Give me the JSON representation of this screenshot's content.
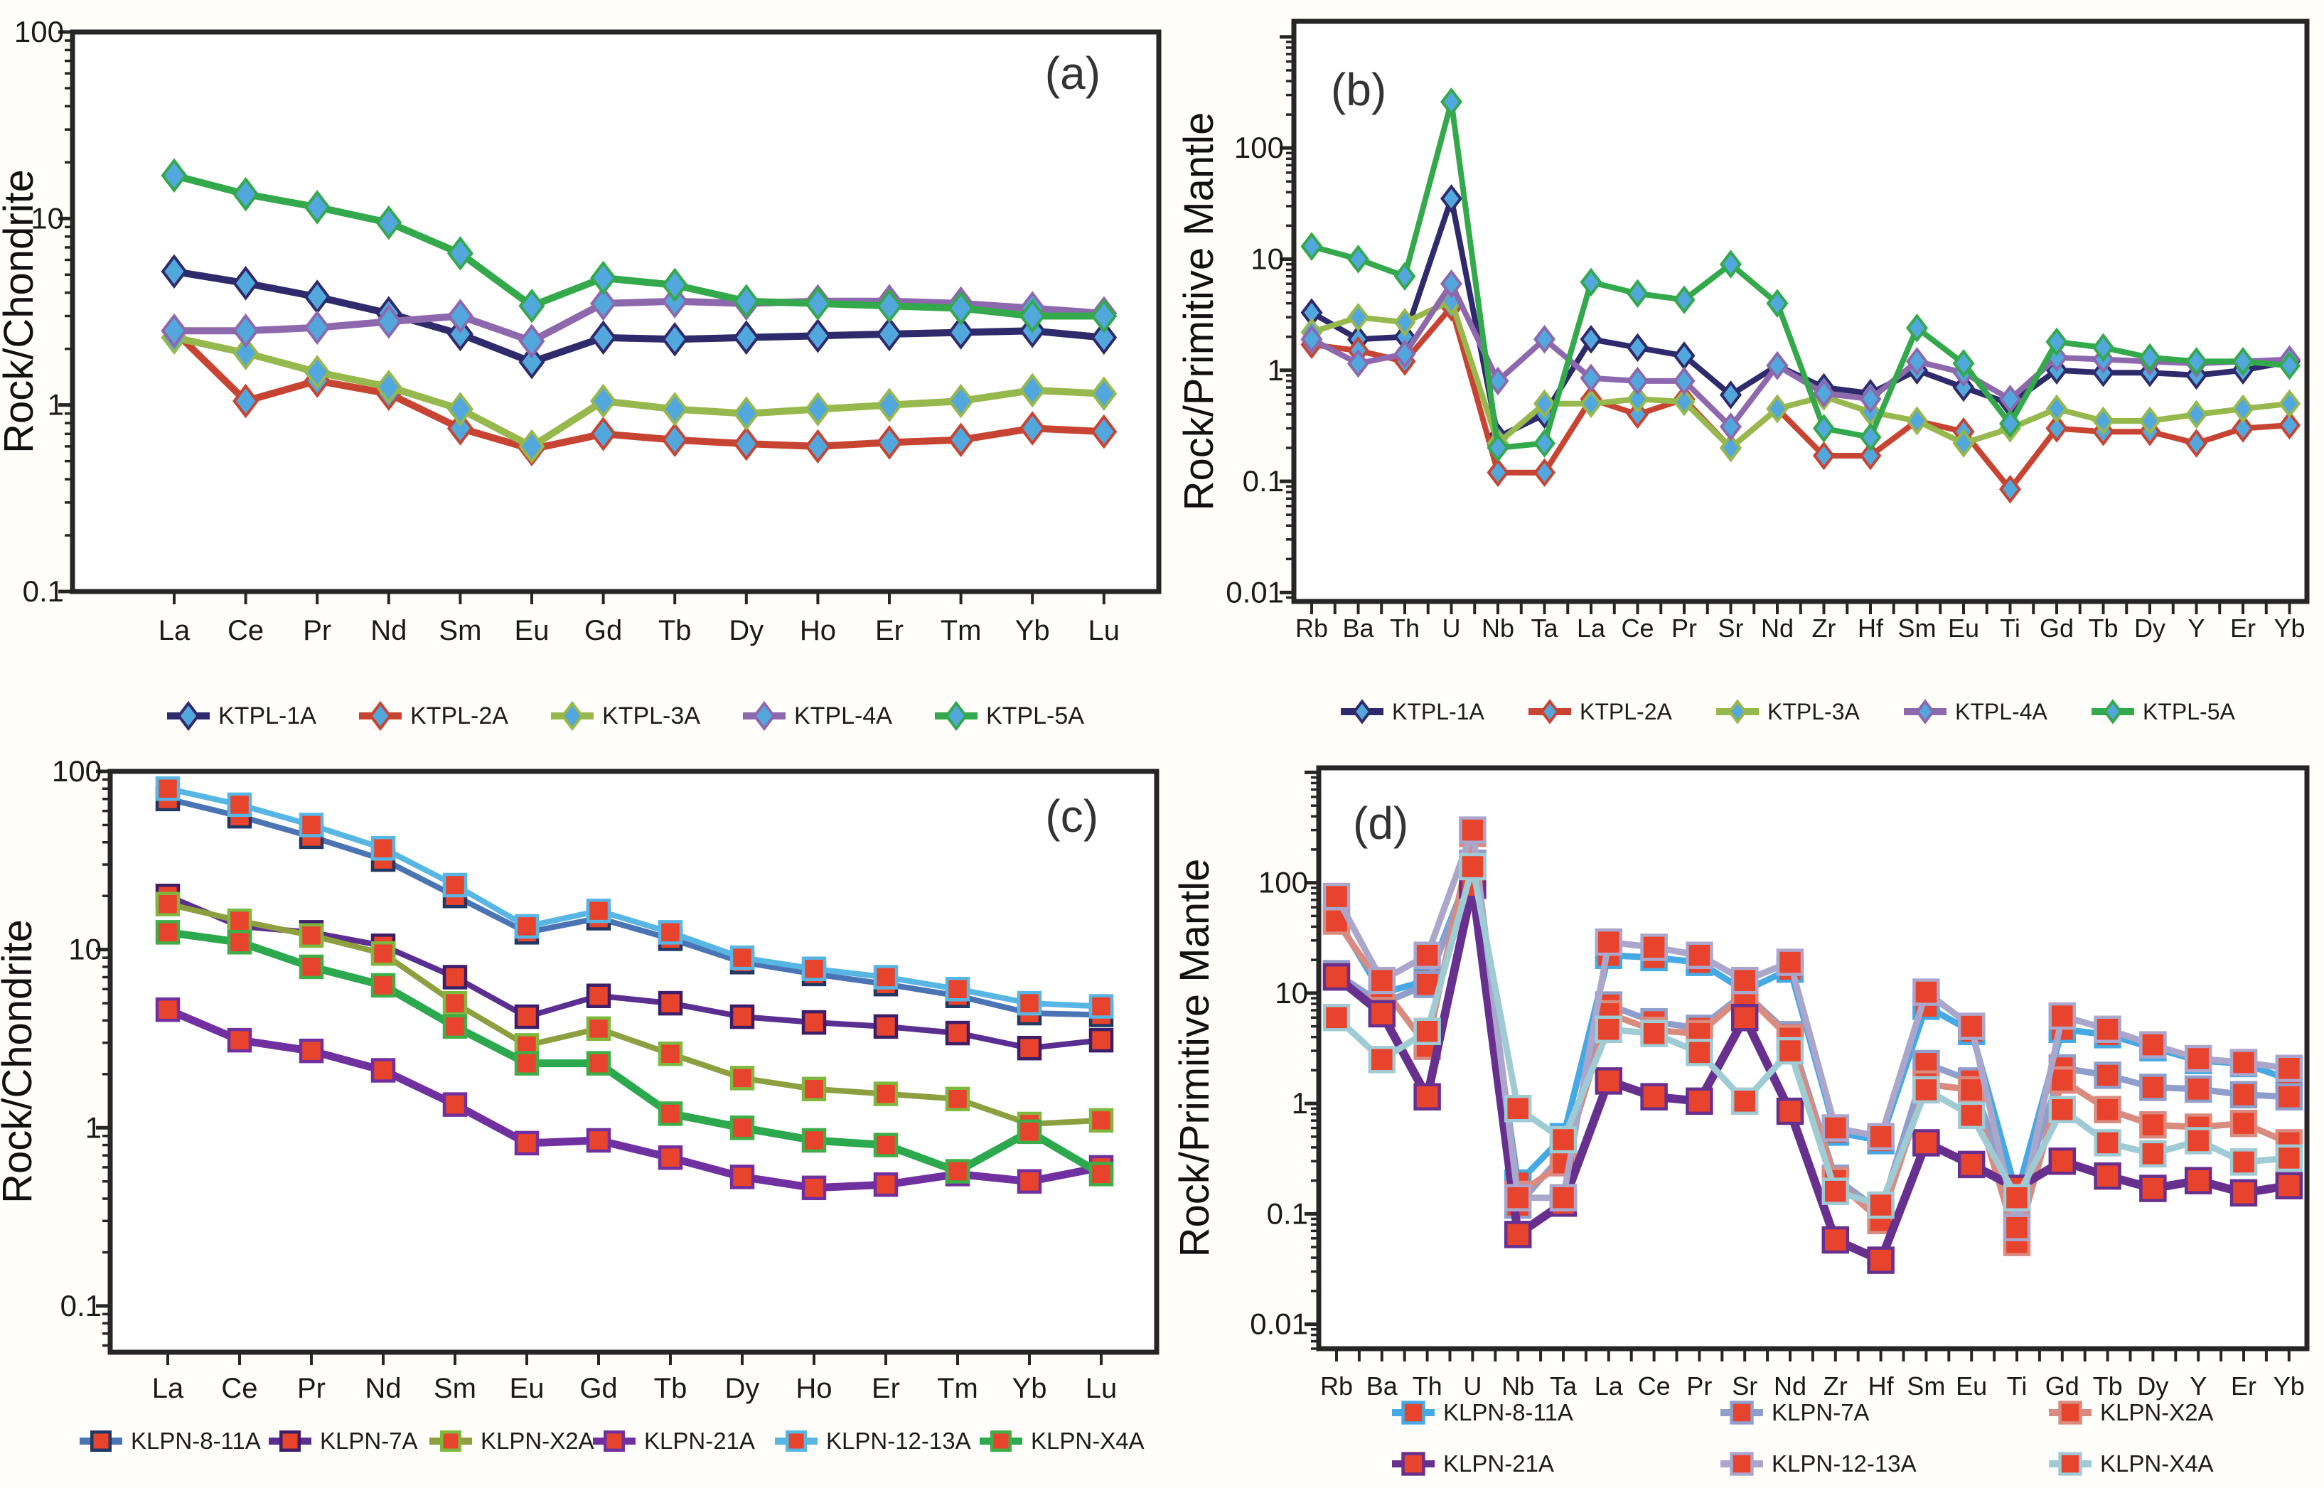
{
  "figure": {
    "background": "#fffefb",
    "frame_color": "#262626",
    "text_color": "#1a1a1a",
    "letter_color": "#333333"
  },
  "chart_data": [
    {
      "id": "a",
      "panel_label": "(a)",
      "type": "line",
      "yaxis_scale": "log",
      "ylabel": "Rock/Chondrite",
      "x_categories": [
        "La",
        "Ce",
        "Pr",
        "Nd",
        "Sm",
        "Eu",
        "Gd",
        "Tb",
        "Dy",
        "Ho",
        "Er",
        "Tm",
        "Yb",
        "Lu"
      ],
      "ylim": [
        0.1,
        100
      ],
      "yticks": [
        "100",
        "10",
        "1",
        "0.1"
      ],
      "grid": false,
      "legend_position": "bottom",
      "marker": "diamond",
      "marker_fill": "#52a7dd",
      "series": [
        {
          "name": "KTPL-1A",
          "color": "#2f2a6b",
          "values": [
            5.2,
            4.5,
            3.8,
            3.1,
            2.4,
            1.7,
            2.3,
            2.25,
            2.3,
            2.35,
            2.4,
            2.45,
            2.5,
            2.3
          ]
        },
        {
          "name": "KTPL-2A",
          "color": "#c84432",
          "values": [
            2.5,
            1.05,
            1.35,
            1.15,
            0.75,
            0.58,
            0.7,
            0.65,
            0.62,
            0.6,
            0.63,
            0.65,
            0.75,
            0.72
          ]
        },
        {
          "name": "KTPL-3A",
          "color": "#96b84c",
          "values": [
            2.3,
            1.9,
            1.5,
            1.25,
            0.95,
            0.6,
            1.05,
            0.95,
            0.9,
            0.95,
            1.0,
            1.05,
            1.2,
            1.15
          ]
        },
        {
          "name": "KTPL-4A",
          "color": "#8d68ad",
          "values": [
            2.5,
            2.5,
            2.6,
            2.8,
            3.0,
            2.2,
            3.5,
            3.6,
            3.5,
            3.6,
            3.6,
            3.5,
            3.3,
            3.1
          ]
        },
        {
          "name": "KTPL-5A",
          "color": "#33a94c",
          "values": [
            17,
            13.5,
            11.5,
            9.5,
            6.5,
            3.4,
            4.8,
            4.4,
            3.6,
            3.5,
            3.4,
            3.3,
            3.0,
            3.0
          ]
        }
      ]
    },
    {
      "id": "b",
      "panel_label": "(b)",
      "type": "line",
      "yaxis_scale": "log",
      "ylabel": "Rock/Primitive Mantle",
      "x_categories": [
        "Rb",
        "Ba",
        "Th",
        "U",
        "Nb",
        "Ta",
        "La",
        "Ce",
        "Pr",
        "Sr",
        "Nd",
        "Zr",
        "Hf",
        "Sm",
        "Eu",
        "Ti",
        "Gd",
        "Tb",
        "Dy",
        "Y",
        "Er",
        "Yb"
      ],
      "ylim": [
        0.0083,
        1380
      ],
      "yticks": [
        "100",
        "10",
        "1",
        "0.1",
        "0.01"
      ],
      "grid": false,
      "legend_position": "bottom",
      "marker": "diamond",
      "marker_fill": "#52a7dd",
      "series": [
        {
          "name": "KTPL-1A",
          "color": "#2f2a6b",
          "values": [
            3.3,
            1.9,
            2.0,
            35,
            0.25,
            0.4,
            1.9,
            1.6,
            1.35,
            0.6,
            1.1,
            0.7,
            0.62,
            1.0,
            0.7,
            0.5,
            1.0,
            0.95,
            0.95,
            0.9,
            1.0,
            1.2
          ]
        },
        {
          "name": "KTPL-2A",
          "color": "#c84432",
          "values": [
            1.7,
            1.5,
            1.2,
            3.7,
            0.12,
            0.12,
            0.55,
            0.4,
            0.55,
            0.2,
            0.45,
            0.17,
            0.17,
            0.35,
            0.28,
            0.085,
            0.3,
            0.28,
            0.28,
            0.22,
            0.3,
            0.32
          ]
        },
        {
          "name": "KTPL-3A",
          "color": "#96b84c",
          "values": [
            2.2,
            3.0,
            2.7,
            4.2,
            0.22,
            0.5,
            0.5,
            0.55,
            0.52,
            0.2,
            0.45,
            0.58,
            0.42,
            0.35,
            0.22,
            0.3,
            0.45,
            0.35,
            0.35,
            0.4,
            0.45,
            0.5
          ]
        },
        {
          "name": "KTPL-4A",
          "color": "#8d68ad",
          "values": [
            1.9,
            1.15,
            1.4,
            6.0,
            0.8,
            1.9,
            0.85,
            0.8,
            0.8,
            0.31,
            1.1,
            0.62,
            0.55,
            1.2,
            0.95,
            0.55,
            1.3,
            1.25,
            1.2,
            1.15,
            1.2,
            1.25
          ]
        },
        {
          "name": "KTPL-5A",
          "color": "#33a94c",
          "values": [
            13,
            10,
            7,
            260,
            0.2,
            0.22,
            6.2,
            4.9,
            4.3,
            9,
            4.0,
            0.3,
            0.25,
            2.4,
            1.15,
            0.33,
            1.8,
            1.6,
            1.3,
            1.2,
            1.2,
            1.1
          ]
        }
      ]
    },
    {
      "id": "c",
      "panel_label": "(c)",
      "type": "line",
      "yaxis_scale": "log",
      "ylabel": "Rock/Chondrite",
      "x_categories": [
        "La",
        "Ce",
        "Pr",
        "Nd",
        "Sm",
        "Eu",
        "Gd",
        "Tb",
        "Dy",
        "Ho",
        "Er",
        "Tm",
        "Yb",
        "Lu"
      ],
      "ylim": [
        0.055,
        100
      ],
      "yticks": [
        "100",
        "10",
        "1",
        "0.1"
      ],
      "grid": false,
      "legend_position": "bottom",
      "marker": "square",
      "marker_fill": "#e8432c",
      "series": [
        {
          "name": "KLPN-8-11A",
          "color": "#4a74b4",
          "edge": "#1f3864",
          "values": [
            70,
            56,
            43,
            32,
            20,
            12.5,
            15,
            11.5,
            8.5,
            7.3,
            6.4,
            5.5,
            4.4,
            4.3
          ]
        },
        {
          "name": "KLPN-7A",
          "color": "#5b2f91",
          "edge": "#3d1e68",
          "values": [
            20,
            13.5,
            12.5,
            10.5,
            7.0,
            4.2,
            5.5,
            5.0,
            4.2,
            3.9,
            3.7,
            3.4,
            2.8,
            3.1
          ]
        },
        {
          "name": "KLPN-X2A",
          "color": "#8d9f3f",
          "edge": "#7fb83f",
          "values": [
            18,
            14.5,
            12,
            9.5,
            5.0,
            2.9,
            3.6,
            2.6,
            1.9,
            1.65,
            1.55,
            1.45,
            1.05,
            1.1
          ]
        },
        {
          "name": "KLPN-21A",
          "color": "#7030a0",
          "edge": "#7030a0",
          "values": [
            4.6,
            3.1,
            2.7,
            2.1,
            1.35,
            0.82,
            0.85,
            0.68,
            0.53,
            0.46,
            0.48,
            0.55,
            0.5,
            0.6
          ]
        },
        {
          "name": "KLPN-12-13A",
          "color": "#58b6e4",
          "edge": "#58b6e4",
          "values": [
            80,
            65,
            50,
            37,
            23,
            13.5,
            16.5,
            12.5,
            9.0,
            7.8,
            7.0,
            6.0,
            5.0,
            4.8
          ]
        },
        {
          "name": "KLPN-X4A",
          "color": "#2ca84e",
          "edge": "#3fae49",
          "values": [
            12.5,
            11,
            8,
            6.3,
            3.7,
            2.3,
            2.3,
            1.2,
            1.0,
            0.85,
            0.8,
            0.57,
            0.95,
            0.55
          ]
        }
      ]
    },
    {
      "id": "d",
      "panel_label": "(d)",
      "type": "line",
      "yaxis_scale": "log",
      "ylabel": "Rock/Primitive Mantle",
      "x_categories": [
        "Rb",
        "Ba",
        "Th",
        "U",
        "Nb",
        "Ta",
        "La",
        "Ce",
        "Pr",
        "Sr",
        "Nd",
        "Zr",
        "Hf",
        "Sm",
        "Eu",
        "Ti",
        "Gd",
        "Tb",
        "Dy",
        "Y",
        "Er",
        "Yb"
      ],
      "ylim": [
        0.006,
        1100
      ],
      "yticks": [
        "100",
        "10",
        "1",
        "0.1",
        "0.01"
      ],
      "grid": false,
      "legend_position": "bottom-two-rows",
      "marker": "square",
      "marker_fill": "#e8432c",
      "series": [
        {
          "name": "KLPN-8-11A",
          "color": "#45a9e4",
          "values": [
            48,
            10,
            13,
            150,
            0.19,
            0.5,
            22,
            21,
            19,
            10.5,
            16.5,
            0.55,
            0.46,
            7.6,
            4.5,
            0.15,
            4.7,
            4.2,
            3.2,
            2.45,
            2.3,
            1.65
          ]
        },
        {
          "name": "KLPN-7A",
          "color": "#8f9ecb",
          "values": [
            15,
            8,
            12,
            150,
            0.12,
            0.35,
            7.8,
            5.5,
            4.8,
            10,
            4.2,
            0.21,
            0.105,
            2.3,
            1.6,
            0.12,
            2.1,
            1.8,
            1.4,
            1.35,
            1.2,
            1.15
          ]
        },
        {
          "name": "KLPN-X2A",
          "color": "#d98b80",
          "values": [
            45,
            11.5,
            3.3,
            280,
            0.15,
            0.29,
            6.5,
            4.6,
            4.3,
            9.8,
            3.9,
            0.2,
            0.087,
            1.5,
            1.33,
            0.055,
            1.63,
            0.88,
            0.64,
            0.61,
            0.66,
            0.44
          ]
        },
        {
          "name": "KLPN-21A",
          "color": "#67308f",
          "values": [
            14,
            6.5,
            1.15,
            95,
            0.065,
            0.125,
            1.6,
            1.15,
            1.05,
            6.0,
            0.85,
            0.058,
            0.038,
            0.44,
            0.28,
            0.17,
            0.3,
            0.22,
            0.17,
            0.2,
            0.155,
            0.18
          ]
        },
        {
          "name": "KLPN-12-13A",
          "color": "#aba6cb",
          "values": [
            75,
            13,
            22,
            300,
            0.14,
            0.14,
            29,
            26,
            22,
            13,
            19,
            0.6,
            0.5,
            10.2,
            5.0,
            0.075,
            6.2,
            4.7,
            3.4,
            2.55,
            2.35,
            2.08
          ]
        },
        {
          "name": "KLPN-X4A",
          "color": "#9fcbd4",
          "values": [
            6,
            2.5,
            4.5,
            140,
            0.9,
            0.47,
            4.7,
            4.3,
            2.9,
            1.05,
            3.0,
            0.16,
            0.12,
            1.33,
            0.78,
            0.14,
            0.88,
            0.44,
            0.35,
            0.46,
            0.295,
            0.32
          ]
        }
      ]
    }
  ]
}
